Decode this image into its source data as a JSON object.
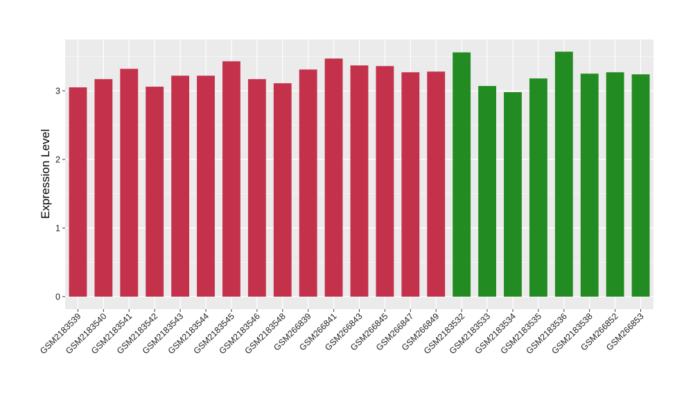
{
  "chart_data": {
    "type": "bar",
    "title": "",
    "xlabel": "",
    "ylabel": "Expression Level",
    "ylim": [
      0,
      3.77
    ],
    "yticks": [
      0,
      1,
      2,
      3
    ],
    "grid": true,
    "categories": [
      "GSM2183539",
      "GSM2183540",
      "GSM2183541",
      "GSM2183542",
      "GSM2183543",
      "GSM2183544",
      "GSM2183545",
      "GSM2183546",
      "GSM2183548",
      "GSM266839",
      "GSM266841",
      "GSM266843",
      "GSM266845",
      "GSM266847",
      "GSM266849",
      "GSM2183532",
      "GSM2183533",
      "GSM2183534",
      "GSM2183535",
      "GSM2183536",
      "GSM2183538",
      "GSM266852",
      "GSM266853"
    ],
    "values": [
      3.05,
      3.17,
      3.32,
      3.06,
      3.22,
      3.22,
      3.43,
      3.17,
      3.11,
      3.31,
      3.47,
      3.37,
      3.36,
      3.27,
      3.28,
      3.56,
      3.07,
      2.98,
      3.18,
      3.57,
      3.25,
      3.27,
      3.24
    ],
    "bar_colors": [
      "#c4314b",
      "#c4314b",
      "#c4314b",
      "#c4314b",
      "#c4314b",
      "#c4314b",
      "#c4314b",
      "#c4314b",
      "#c4314b",
      "#c4314b",
      "#c4314b",
      "#c4314b",
      "#c4314b",
      "#c4314b",
      "#c4314b",
      "#228b22",
      "#228b22",
      "#228b22",
      "#228b22",
      "#228b22",
      "#228b22",
      "#228b22",
      "#228b22"
    ],
    "panel_background": "#ebebeb",
    "gridline_color": "#ffffff"
  }
}
